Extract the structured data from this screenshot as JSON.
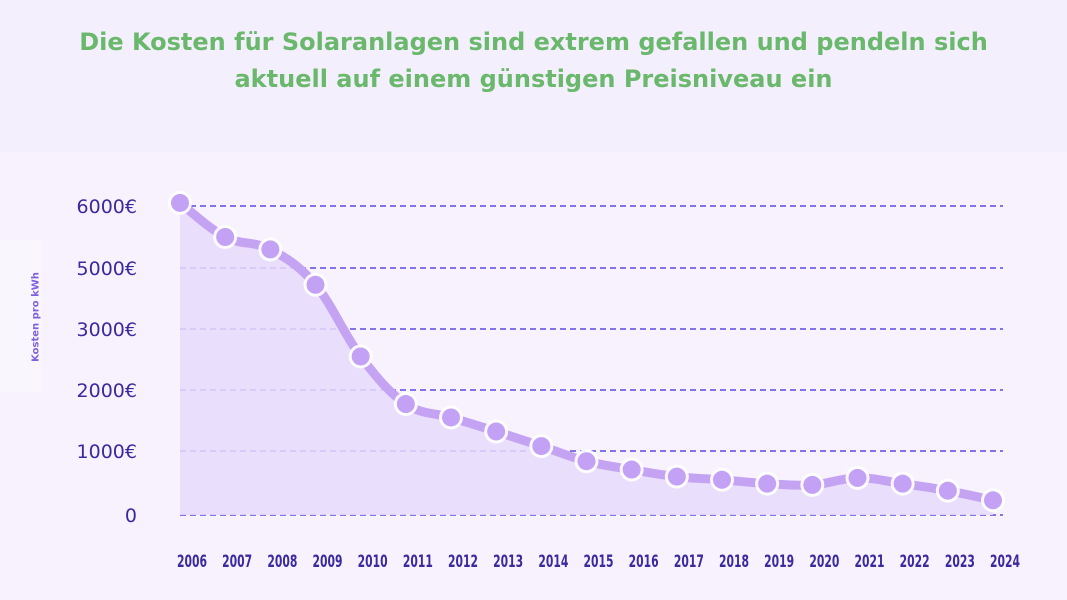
{
  "header": {
    "title_line1": "Die Kosten für Solaranlagen sind extrem gefallen und pendeln sich",
    "title_line2": "aktuell auf einem günstigen Preisniveau ein"
  },
  "colors": {
    "title": "#6ab86c",
    "axis_text": "#3b2a9e",
    "grid": "#5b4ad8",
    "line": "#c4a4f2",
    "marker": "#c3a2f5",
    "area": "#e6dafc"
  },
  "chart_data": {
    "type": "line",
    "title": "Die Kosten für Solaranlagen sind extrem gefallen und pendeln sich aktuell auf einem günstigen Preisniveau ein",
    "xlabel": "",
    "ylabel": "Kosten pro kWh",
    "categories": [
      "2006",
      "2007",
      "2008",
      "2009",
      "2010",
      "2011",
      "2012",
      "2013",
      "2014",
      "2015",
      "2016",
      "2017",
      "2018",
      "2019",
      "2020",
      "2021",
      "2022",
      "2023",
      "2024"
    ],
    "yticks": [
      {
        "label": "0",
        "value": 0
      },
      {
        "label": "1000€",
        "value": 1000
      },
      {
        "label": "2000€",
        "value": 2000
      },
      {
        "label": "3000€",
        "value": 3000
      },
      {
        "label": "5000€",
        "value": 5000
      },
      {
        "label": "6000€",
        "value": 6000
      }
    ],
    "ylim": [
      0,
      6000
    ],
    "grid": true,
    "area_fill": true,
    "series": [
      {
        "values": [
          6050,
          5500,
          5300,
          4450,
          2550,
          1770,
          1550,
          1320,
          1080,
          840,
          710,
          600,
          550,
          490,
          470,
          580,
          490,
          380,
          230
        ]
      }
    ]
  }
}
